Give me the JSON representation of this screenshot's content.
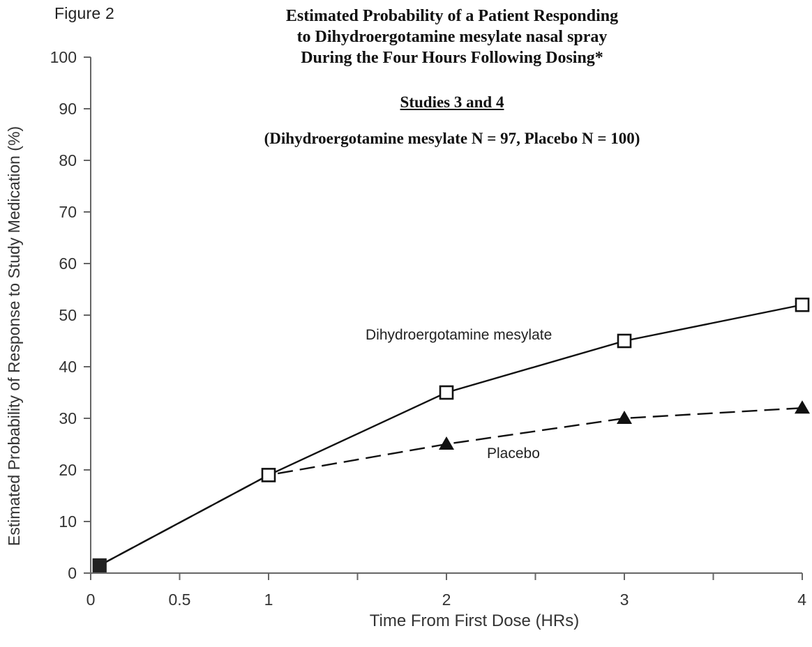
{
  "figure_label": "Figure 2",
  "chart_data": {
    "type": "line",
    "title_lines": [
      "Estimated Probability of a Patient Responding",
      "to Dihydroergotamine mesylate nasal spray",
      "During the Four Hours Following Dosing*"
    ],
    "subtitle": "Studies 3 and 4",
    "subtitle2": "(Dihydroergotamine mesylate N = 97, Placebo N = 100)",
    "xlabel": "Time From First Dose (HRs)",
    "ylabel": "Estimated Probability of Response to Study Medication (%)",
    "xlim": [
      0,
      4
    ],
    "ylim": [
      0,
      100
    ],
    "x_ticks": [
      0,
      0.5,
      1,
      2,
      3,
      4
    ],
    "x_tick_labels": [
      "0",
      "0.5",
      "1",
      "2",
      "3",
      "4"
    ],
    "y_ticks": [
      0,
      10,
      20,
      30,
      40,
      50,
      60,
      70,
      80,
      90,
      100
    ],
    "y_tick_labels": [
      "0",
      "10",
      "20",
      "30",
      "40",
      "50",
      "60",
      "70",
      "80",
      "90",
      "100"
    ],
    "grid": false,
    "series": [
      {
        "name": "Dihydroergotamine mesylate",
        "x": [
          0.05,
          1,
          2,
          3,
          4
        ],
        "y": [
          1.5,
          19,
          35,
          45,
          52
        ],
        "line_style": "solid",
        "marker": "open-square",
        "color": "#111111"
      },
      {
        "name": "Placebo",
        "x": [
          0.05,
          1,
          2,
          3,
          4
        ],
        "y": [
          1.5,
          19,
          25,
          30,
          32
        ],
        "line_style": "dashed",
        "marker": "filled-triangle",
        "color": "#111111"
      }
    ],
    "annotations": [
      "Dihydroergotamine mesylate",
      "Placebo"
    ]
  }
}
